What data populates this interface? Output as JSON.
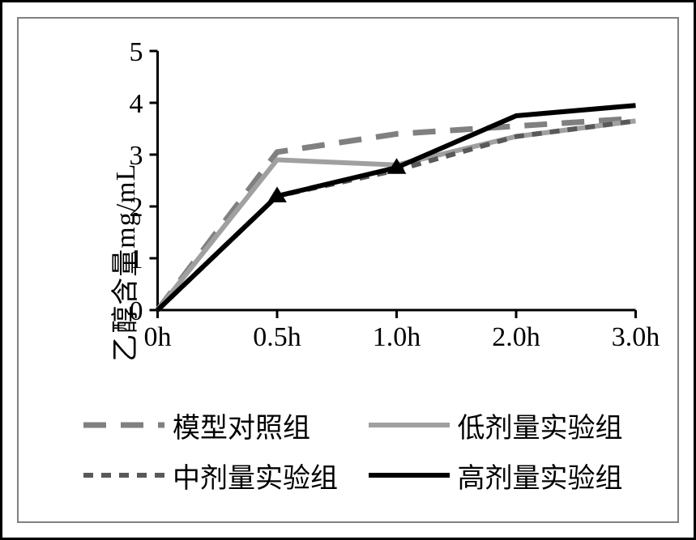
{
  "chart": {
    "type": "line",
    "background_color": "#ffffff",
    "outer_border_color": "#000000",
    "panel_border_color": "#808080",
    "ylabel": "乙醇含量mg/mL",
    "label_fontsize": 34,
    "ylim": [
      0,
      5
    ],
    "ytick_step": 1,
    "yticks": [
      0,
      1,
      2,
      3,
      4,
      5
    ],
    "x_categories": [
      "0h",
      "0.5h",
      "1.0h",
      "2.0h",
      "3.0h"
    ],
    "axis_color": "#000000",
    "tick_length": 10,
    "tick_fontsize": 34,
    "series": [
      {
        "name": "模型对照组",
        "values": [
          0,
          3.05,
          3.4,
          3.55,
          3.7
        ],
        "color": "#808080",
        "width": 7,
        "dash": "long-dash",
        "dasharray": "28 18",
        "marker": "none"
      },
      {
        "name": "低剂量实验组",
        "values": [
          0,
          2.9,
          2.8,
          3.35,
          3.65
        ],
        "color": "#a0a0a0",
        "width": 6,
        "dash": "solid",
        "dasharray": "",
        "marker": "none"
      },
      {
        "name": "中剂量实验组",
        "values": [
          0,
          2.2,
          2.7,
          3.35,
          3.65
        ],
        "color": "#595959",
        "width": 6,
        "dash": "short-dash",
        "dasharray": "12 10",
        "marker": "none"
      },
      {
        "name": "高剂量实验组",
        "values": [
          0,
          2.2,
          2.75,
          3.75,
          3.95
        ],
        "color": "#000000",
        "width": 6,
        "dash": "solid",
        "dasharray": "",
        "marker": "triangle",
        "marker_points": [
          1,
          2
        ],
        "marker_size": 20,
        "marker_color": "#000000"
      }
    ],
    "legend": {
      "layout": "2x2",
      "swatch_length": 100,
      "fontsize": 34,
      "items": [
        {
          "series_index": 0,
          "row": 0,
          "col": 0
        },
        {
          "series_index": 1,
          "row": 0,
          "col": 1
        },
        {
          "series_index": 2,
          "row": 1,
          "col": 0
        },
        {
          "series_index": 3,
          "row": 1,
          "col": 1
        }
      ]
    }
  }
}
